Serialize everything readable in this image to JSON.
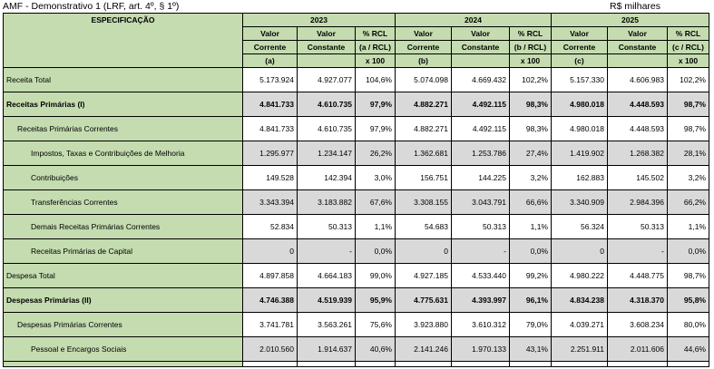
{
  "caption": {
    "title": "AMF - Demonstrativo 1 (LRF, art. 4º, § 1º)",
    "unit": "R$ milhares"
  },
  "header": {
    "spec": "ESPECIFICAÇÃO",
    "years": [
      "2023",
      "2024",
      "2025"
    ],
    "sub": {
      "corrente": [
        "Valor",
        "Corrente"
      ],
      "constante": [
        "Valor",
        "Constante"
      ],
      "pct": [
        "% RCL"
      ],
      "x100": "x 100"
    },
    "letters": [
      "(a)",
      "(b)",
      "(c)"
    ],
    "ratios": [
      "(a / RCL)",
      "(b / RCL)",
      "(c / RCL)"
    ]
  },
  "rows": [
    {
      "label": "Receita Total",
      "indent": 0,
      "bold": false,
      "shaded": false,
      "values": [
        "5.173.924",
        "4.927.077",
        "104,6%",
        "5.074.098",
        "4.669.432",
        "102,2%",
        "5.157.330",
        "4.606.983",
        "102,2%"
      ]
    },
    {
      "label": "Receitas Primárias (I)",
      "indent": 0,
      "bold": true,
      "shaded": true,
      "values": [
        "4.841.733",
        "4.610.735",
        "97,9%",
        "4.882.271",
        "4.492.115",
        "98,3%",
        "4.980.018",
        "4.448.593",
        "98,7%"
      ]
    },
    {
      "label": "Receitas Primárias Correntes",
      "indent": 1,
      "bold": false,
      "shaded": false,
      "values": [
        "4.841.733",
        "4.610.735",
        "97,9%",
        "4.882.271",
        "4.492.115",
        "98,3%",
        "4.980.018",
        "4.448.593",
        "98,7%"
      ]
    },
    {
      "label": "Impostos, Taxas e Contribuições de Melhoria",
      "indent": 2,
      "bold": false,
      "shaded": true,
      "values": [
        "1.295.977",
        "1.234.147",
        "26,2%",
        "1.362.681",
        "1.253.786",
        "27,4%",
        "1.419.902",
        "1.268.382",
        "28,1%"
      ]
    },
    {
      "label": "Contribuições",
      "indent": 2,
      "bold": false,
      "shaded": false,
      "values": [
        "149.528",
        "142.394",
        "3,0%",
        "156.751",
        "144.225",
        "3,2%",
        "162.883",
        "145.502",
        "3,2%"
      ]
    },
    {
      "label": "Transferências Correntes",
      "indent": 2,
      "bold": false,
      "shaded": true,
      "values": [
        "3.343.394",
        "3.183.882",
        "67,6%",
        "3.308.155",
        "3.043.791",
        "66,6%",
        "3.340.909",
        "2.984.396",
        "66,2%"
      ]
    },
    {
      "label": "Demais Receitas Primárias Correntes",
      "indent": 2,
      "bold": false,
      "shaded": false,
      "values": [
        "52.834",
        "50.313",
        "1,1%",
        "54.683",
        "50.313",
        "1,1%",
        "56.324",
        "50.313",
        "1,1%"
      ]
    },
    {
      "label": "Receitas Primárias de Capital",
      "indent": 2,
      "bold": false,
      "shaded": true,
      "values": [
        "0",
        "-",
        "0,0%",
        "0",
        "-",
        "0,0%",
        "0",
        "-",
        "0,0%"
      ]
    },
    {
      "label": "Despesa Total",
      "indent": 0,
      "bold": false,
      "shaded": false,
      "values": [
        "4.897.858",
        "4.664.183",
        "99,0%",
        "4.927.185",
        "4.533.440",
        "99,2%",
        "4.980.222",
        "4.448.775",
        "98,7%"
      ]
    },
    {
      "label": "Despesas Primárias (II)",
      "indent": 0,
      "bold": true,
      "shaded": true,
      "values": [
        "4.746.388",
        "4.519.939",
        "95,9%",
        "4.775.631",
        "4.393.997",
        "96,1%",
        "4.834.238",
        "4.318.370",
        "95,8%"
      ]
    },
    {
      "label": "Despesas Primárias Correntes",
      "indent": 1,
      "bold": false,
      "shaded": false,
      "values": [
        "3.741.781",
        "3.563.261",
        "75,6%",
        "3.923.880",
        "3.610.312",
        "79,0%",
        "4.039.271",
        "3.608.234",
        "80,0%"
      ]
    },
    {
      "label": "Pessoal e Encargos Sociais",
      "indent": 2,
      "bold": false,
      "shaded": true,
      "values": [
        "2.010.560",
        "1.914.637",
        "40,6%",
        "2.141.246",
        "1.970.133",
        "43,1%",
        "2.251.911",
        "2.011.606",
        "44,6%"
      ]
    }
  ]
}
